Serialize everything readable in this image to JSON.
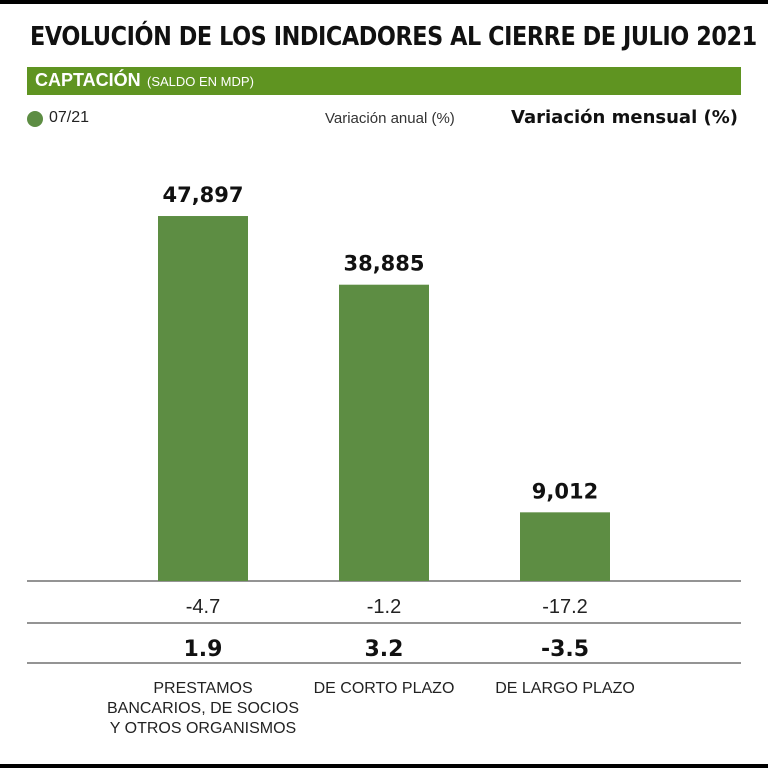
{
  "header": {
    "title": "EVOLUCIÓN DE LOS INDICADORES AL CIERRE DE JULIO 2021"
  },
  "section": {
    "label": "CAPTACIÓN",
    "sublabel": "(SALDO EN MDP)"
  },
  "legend": {
    "series_label": "07/21",
    "annual_header": "Variación anual (%)",
    "monthly_header": "Variación mensual (%)"
  },
  "colors": {
    "bar": "#5d8d43",
    "section_bar": "#5f9421"
  },
  "chart_data": {
    "type": "bar",
    "title": "EVOLUCIÓN DE LOS INDICADORES AL CIERRE DE JULIO 2021",
    "categories": [
      [
        "PRESTAMOS",
        "BANCARIOS, DE SOCIOS",
        "Y OTROS ORGANISMOS"
      ],
      [
        "DE CORTO PLAZO"
      ],
      [
        "DE LARGO PLAZO"
      ]
    ],
    "series": [
      {
        "name": "07/21",
        "values": [
          47897,
          38885,
          9012
        ]
      }
    ],
    "value_labels": [
      "47,897",
      "38,885",
      "9,012"
    ],
    "annual_variation": [
      "-4.7",
      "-1.2",
      "-17.2"
    ],
    "monthly_variation": [
      "1.9",
      "3.2",
      "-3.5"
    ],
    "ylim": [
      0,
      50000
    ],
    "grid": false,
    "legend_position": "top-left"
  }
}
